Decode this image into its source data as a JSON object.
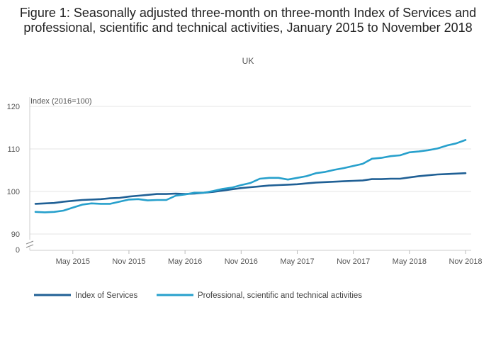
{
  "chart_data": {
    "type": "line",
    "title": "Figure 1: Seasonally adjusted three-month on three-month Index of Services and professional, scientific and technical activities, January 2015 to November 2018",
    "subtitle": "UK",
    "ylabel": "Index (2016=100)",
    "ylim": [
      90,
      120
    ],
    "yticks": [
      120,
      110,
      100,
      90
    ],
    "y_break_label": "0",
    "x_start": "Jan 2015",
    "x_end": "Nov 2018",
    "xticks": [
      {
        "label": "May 2015",
        "index": 4
      },
      {
        "label": "Nov 2015",
        "index": 10
      },
      {
        "label": "May 2016",
        "index": 16
      },
      {
        "label": "Nov 2016",
        "index": 22
      },
      {
        "label": "May 2017",
        "index": 28
      },
      {
        "label": "Nov 2017",
        "index": 34
      },
      {
        "label": "May 2018",
        "index": 40
      },
      {
        "label": "Nov 2018",
        "index": 46
      }
    ],
    "series": [
      {
        "name": "Index of Services",
        "color": "#206095",
        "values": [
          97.1,
          97.2,
          97.3,
          97.6,
          97.8,
          98.0,
          98.1,
          98.2,
          98.4,
          98.5,
          98.8,
          99.0,
          99.2,
          99.4,
          99.4,
          99.5,
          99.4,
          99.5,
          99.7,
          99.9,
          100.2,
          100.5,
          100.8,
          101.0,
          101.2,
          101.4,
          101.5,
          101.6,
          101.7,
          101.9,
          102.1,
          102.2,
          102.3,
          102.4,
          102.5,
          102.6,
          102.9,
          102.9,
          103.0,
          103.0,
          103.3,
          103.6,
          103.8,
          104.0,
          104.1,
          104.2,
          104.3
        ]
      },
      {
        "name": "Professional, scientific and technical activities",
        "color": "#27a0cc",
        "values": [
          95.2,
          95.1,
          95.2,
          95.5,
          96.2,
          96.9,
          97.2,
          97.1,
          97.1,
          97.6,
          98.1,
          98.2,
          97.9,
          98.0,
          98.0,
          99.0,
          99.3,
          99.7,
          99.7,
          100.1,
          100.6,
          100.9,
          101.5,
          102.0,
          103.0,
          103.2,
          103.2,
          102.8,
          103.2,
          103.6,
          104.3,
          104.6,
          105.1,
          105.5,
          106.0,
          106.5,
          107.7,
          107.9,
          108.3,
          108.5,
          109.2,
          109.4,
          109.7,
          110.1,
          110.8,
          111.3,
          112.1
        ]
      }
    ]
  }
}
